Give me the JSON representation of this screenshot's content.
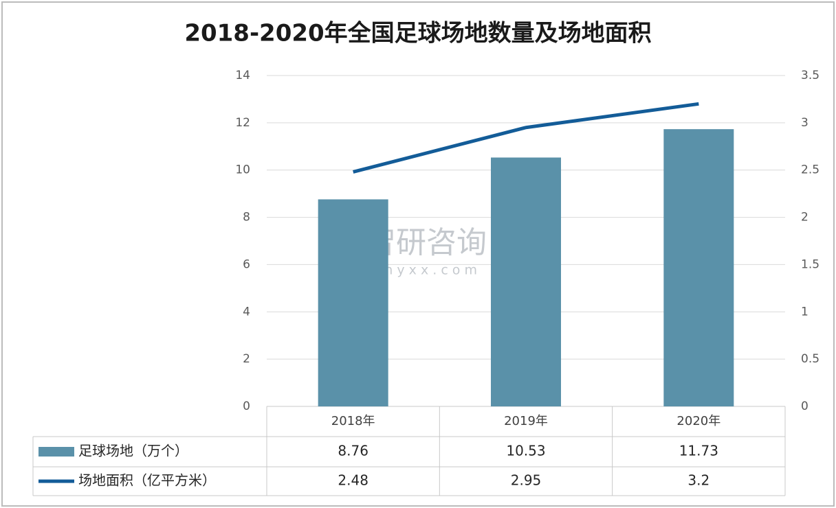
{
  "chart_data": {
    "type": "bar",
    "title": "2018-2020年全国足球场地数量及场地面积",
    "categories": [
      "2018年",
      "2019年",
      "2020年"
    ],
    "series": [
      {
        "name": "足球场地（万个）",
        "type": "bar",
        "color": "#5a91a9",
        "values": [
          8.76,
          10.53,
          11.73
        ]
      },
      {
        "name": "场地面积（亿平方米）",
        "type": "line",
        "axis": "y2",
        "color": "#135c98",
        "values": [
          2.48,
          2.95,
          3.2
        ]
      }
    ],
    "ylim": [
      0,
      14
    ],
    "yticks": [
      0,
      2,
      4,
      6,
      8,
      10,
      12,
      14
    ],
    "y2lim": [
      0,
      3.5
    ],
    "y2ticks": [
      0,
      0.5,
      1,
      1.5,
      2,
      2.5,
      3,
      3.5
    ],
    "grid": true,
    "watermark": {
      "brand": "智研咨询",
      "url": "w w w . c h y x x . c o m"
    }
  }
}
